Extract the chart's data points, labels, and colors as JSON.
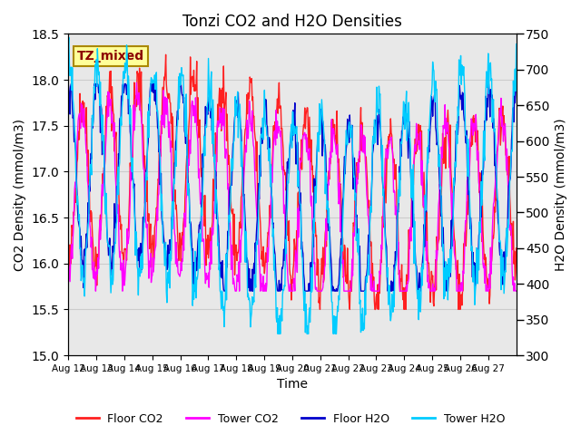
{
  "title": "Tonzi CO2 and H2O Densities",
  "xlabel": "Time",
  "ylabel_left": "CO2 Density (mmol/m3)",
  "ylabel_right": "H2O Density (mmol/m3)",
  "annotation": "TZ_mixed",
  "annotation_color": "#8B0000",
  "annotation_bg": "#FFFF99",
  "ylim_left": [
    15.0,
    18.5
  ],
  "ylim_right": [
    300,
    750
  ],
  "yticks_left": [
    15.0,
    15.5,
    16.0,
    16.5,
    17.0,
    17.5,
    18.0,
    18.5
  ],
  "yticks_right": [
    300,
    350,
    400,
    450,
    500,
    550,
    600,
    650,
    700,
    750
  ],
  "xtick_labels": [
    "Aug 12",
    "Aug 13",
    "Aug 14",
    "Aug 15",
    "Aug 16",
    "Aug 17",
    "Aug 18",
    "Aug 19",
    "Aug 20",
    "Aug 21",
    "Aug 22",
    "Aug 23",
    "Aug 24",
    "Aug 25",
    "Aug 26",
    "Aug 27"
  ],
  "legend_labels": [
    "Floor CO2",
    "Tower CO2",
    "Floor H2O",
    "Tower H2O"
  ],
  "line_colors": [
    "#FF2020",
    "#FF00FF",
    "#0000CC",
    "#00CCFF"
  ],
  "grid_color": "#CCCCCC",
  "bg_color": "#E8E8E8",
  "n_days": 16,
  "pts_per_day": 48,
  "seed": 42
}
